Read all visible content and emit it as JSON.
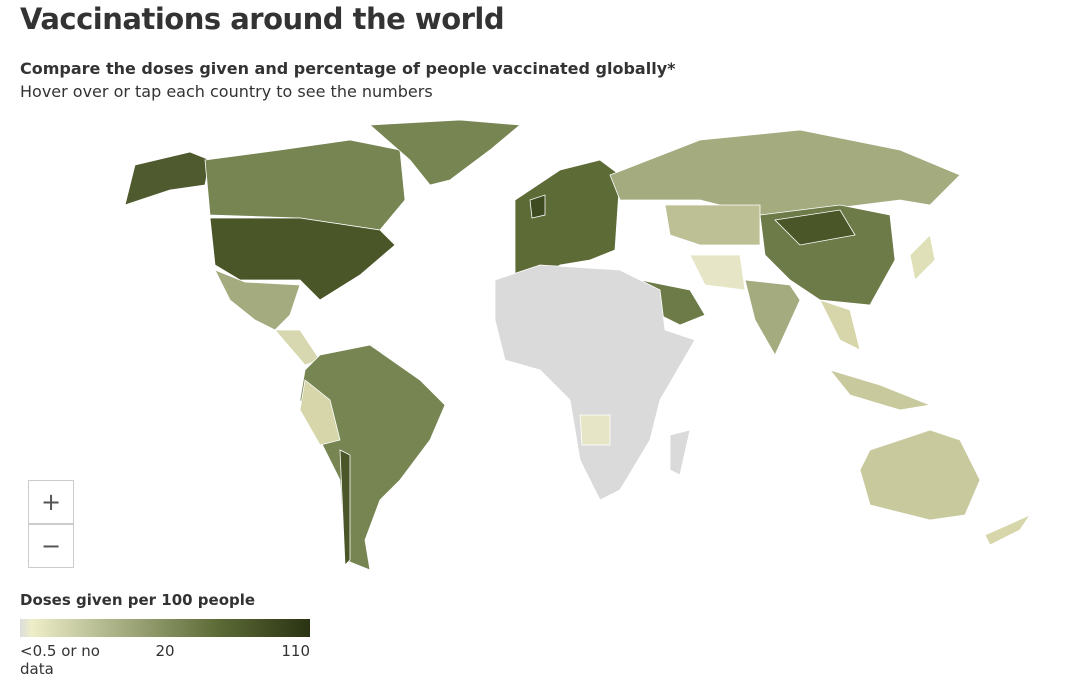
{
  "header": {
    "title": "Vaccinations around the world",
    "subtitle": "Compare the doses given and percentage of people vaccinated globally*",
    "instruction": "Hover over or tap each country to see the numbers"
  },
  "zoom": {
    "in": "+",
    "out": "−"
  },
  "legend": {
    "title": "Doses given per 100 people",
    "labels": [
      "<0.5 or no data",
      "20",
      "110"
    ],
    "colors": [
      "#dcdcdc",
      "#eeeec8",
      "#a3ab7f",
      "#5d6b37",
      "#2a3312"
    ]
  }
}
